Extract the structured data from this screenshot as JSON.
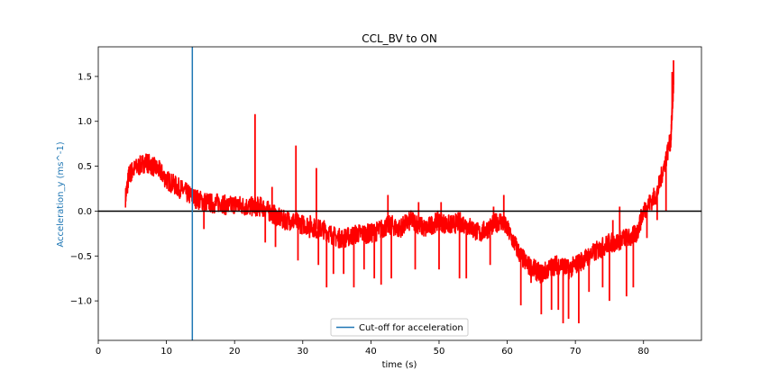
{
  "chart_data": {
    "type": "line",
    "title": "CCL_BV to ON",
    "xlabel": "time (s)",
    "ylabel": "Acceleration_y (ms^-1)",
    "xlim": [
      0,
      88.5
    ],
    "ylim": [
      -1.44,
      1.83
    ],
    "x_ticks": [
      0,
      10,
      20,
      30,
      40,
      50,
      60,
      70,
      80
    ],
    "y_ticks": [
      -1.0,
      -0.5,
      0.0,
      0.5,
      1.0,
      1.5
    ],
    "x_tick_labels": [
      "0",
      "10",
      "20",
      "30",
      "40",
      "50",
      "60",
      "70",
      "80"
    ],
    "y_tick_labels": [
      "−1.0",
      "−0.5",
      "0.0",
      "0.5",
      "1.0",
      "1.5"
    ],
    "grid": false,
    "legend": {
      "placement": "lower center",
      "entries": [
        "Cut-off for acceleration"
      ]
    },
    "reference_lines": [
      {
        "orientation": "horizontal",
        "y": 0.0,
        "color": "#000000"
      },
      {
        "orientation": "vertical",
        "x": 13.8,
        "color": "#1f77b4",
        "label": "Cut-off for acceleration"
      }
    ],
    "series": [
      {
        "color": "#ff0000",
        "x": [
          4.0,
          4.5,
          5,
          6,
          7,
          8,
          9,
          10,
          11,
          12,
          13,
          14,
          15,
          16,
          17,
          18,
          19,
          20,
          21,
          22,
          23,
          24,
          25,
          26,
          27,
          28,
          29,
          30,
          31,
          32,
          33,
          34,
          35,
          36,
          37,
          38,
          39,
          40,
          41,
          42,
          43,
          44,
          45,
          46,
          47,
          48,
          49,
          50,
          51,
          52,
          53,
          54,
          55,
          56,
          57,
          58,
          59,
          60,
          61,
          62,
          63,
          64,
          65,
          66,
          67,
          68,
          69,
          70,
          71,
          72,
          73,
          74,
          75,
          76,
          77,
          78,
          79,
          80,
          81,
          82,
          83,
          84,
          84.4
        ],
        "y": [
          0.15,
          0.4,
          0.45,
          0.5,
          0.55,
          0.5,
          0.45,
          0.35,
          0.3,
          0.25,
          0.2,
          0.15,
          0.12,
          0.1,
          0.08,
          0.1,
          0.05,
          0.08,
          0.06,
          0.05,
          0.05,
          0.05,
          0.0,
          -0.05,
          -0.1,
          -0.1,
          -0.12,
          -0.15,
          -0.15,
          -0.2,
          -0.2,
          -0.25,
          -0.3,
          -0.3,
          -0.28,
          -0.25,
          -0.25,
          -0.25,
          -0.22,
          -0.18,
          -0.15,
          -0.2,
          -0.15,
          -0.1,
          -0.15,
          -0.2,
          -0.15,
          -0.1,
          -0.15,
          -0.15,
          -0.12,
          -0.15,
          -0.2,
          -0.25,
          -0.2,
          -0.15,
          -0.1,
          -0.2,
          -0.35,
          -0.5,
          -0.6,
          -0.65,
          -0.7,
          -0.65,
          -0.6,
          -0.6,
          -0.65,
          -0.6,
          -0.55,
          -0.5,
          -0.45,
          -0.4,
          -0.35,
          -0.35,
          -0.3,
          -0.3,
          -0.25,
          0.0,
          0.1,
          0.2,
          0.5,
          0.8,
          1.4
        ],
        "spikes": [
          {
            "x": 15.5,
            "y": -0.2
          },
          {
            "x": 23.0,
            "y": 1.08
          },
          {
            "x": 24.5,
            "y": -0.35
          },
          {
            "x": 25.5,
            "y": 0.27
          },
          {
            "x": 26.0,
            "y": -0.4
          },
          {
            "x": 29.0,
            "y": 0.73
          },
          {
            "x": 29.3,
            "y": -0.55
          },
          {
            "x": 31.0,
            "y": -0.3
          },
          {
            "x": 32.0,
            "y": 0.48
          },
          {
            "x": 32.3,
            "y": -0.6
          },
          {
            "x": 33.5,
            "y": -0.85
          },
          {
            "x": 34.5,
            "y": -0.7
          },
          {
            "x": 36.0,
            "y": -0.7
          },
          {
            "x": 37.5,
            "y": -0.85
          },
          {
            "x": 39.0,
            "y": -0.65
          },
          {
            "x": 40.5,
            "y": -0.75
          },
          {
            "x": 41.5,
            "y": -0.82
          },
          {
            "x": 42.5,
            "y": 0.18
          },
          {
            "x": 43.0,
            "y": -0.75
          },
          {
            "x": 46.5,
            "y": -0.65
          },
          {
            "x": 47.0,
            "y": 0.1
          },
          {
            "x": 50.0,
            "y": -0.65
          },
          {
            "x": 50.3,
            "y": 0.1
          },
          {
            "x": 53.0,
            "y": -0.75
          },
          {
            "x": 54.0,
            "y": -0.75
          },
          {
            "x": 57.5,
            "y": -0.6
          },
          {
            "x": 58.0,
            "y": 0.05
          },
          {
            "x": 59.5,
            "y": 0.18
          },
          {
            "x": 62.0,
            "y": -1.05
          },
          {
            "x": 63.5,
            "y": -0.8
          },
          {
            "x": 65.0,
            "y": -1.15
          },
          {
            "x": 66.5,
            "y": -1.1
          },
          {
            "x": 67.5,
            "y": -1.1
          },
          {
            "x": 68.2,
            "y": -1.25
          },
          {
            "x": 69.0,
            "y": -1.2
          },
          {
            "x": 70.5,
            "y": -1.25
          },
          {
            "x": 72.0,
            "y": -0.9
          },
          {
            "x": 74.0,
            "y": -0.85
          },
          {
            "x": 75.0,
            "y": -1.0
          },
          {
            "x": 75.5,
            "y": -0.1
          },
          {
            "x": 76.5,
            "y": 0.05
          },
          {
            "x": 77.5,
            "y": -0.95
          },
          {
            "x": 78.5,
            "y": -0.85
          },
          {
            "x": 80.5,
            "y": -0.3
          },
          {
            "x": 82.0,
            "y": -0.1
          },
          {
            "x": 83.3,
            "y": 0.0
          },
          {
            "x": 84.2,
            "y": 1.55
          },
          {
            "x": 84.4,
            "y": 1.68
          }
        ]
      }
    ]
  }
}
